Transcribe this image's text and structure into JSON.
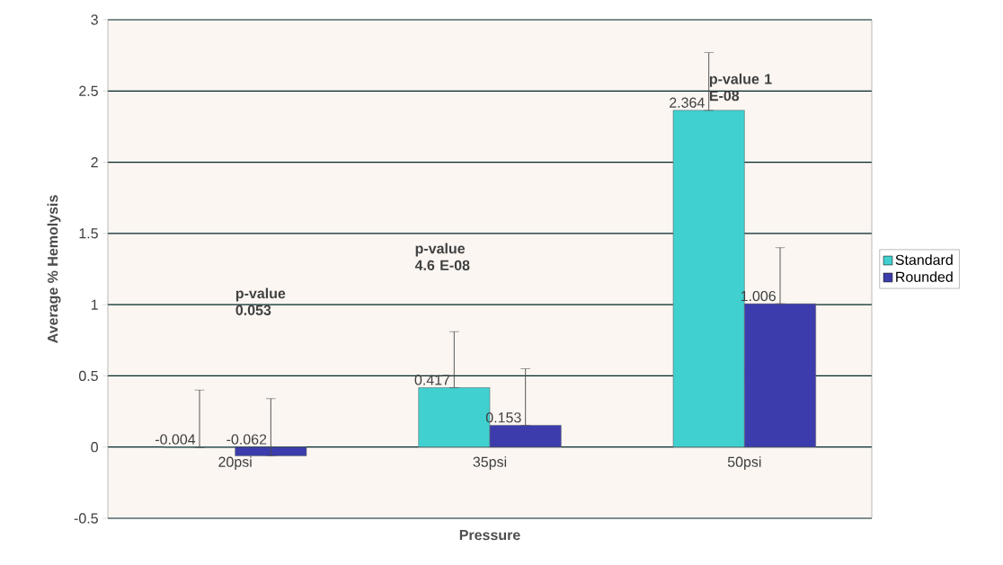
{
  "chart_data": {
    "type": "bar",
    "xlabel": "Pressure",
    "ylabel": "Average % Hemolysis",
    "categories": [
      "20psi",
      "35psi",
      "50psi"
    ],
    "series": [
      {
        "name": "Standard",
        "color": "#40d0d0",
        "values": [
          -0.004,
          0.417,
          2.364
        ],
        "value_labels": [
          "-0.004",
          "0.417",
          "2.364"
        ],
        "errors": [
          [
            -0.004,
            0.4
          ],
          [
            0.417,
            0.81
          ],
          [
            2.364,
            2.77
          ]
        ]
      },
      {
        "name": "Rounded",
        "color": "#3c3cac",
        "values": [
          -0.062,
          0.153,
          1.006
        ],
        "value_labels": [
          "-0.062",
          "0.153",
          "1.006"
        ],
        "errors": [
          [
            -0.062,
            0.34
          ],
          [
            0.153,
            0.55
          ],
          [
            1.006,
            1.4
          ]
        ]
      }
    ],
    "ylim": [
      -0.5,
      3
    ],
    "yticks": [
      -0.5,
      0,
      0.5,
      1,
      1.5,
      2,
      2.5,
      3
    ],
    "grid": "y",
    "legend": "right",
    "annotations": [
      "p-value 0.053",
      "p-value 4.6 E-08",
      "p-value 1 E-08"
    ]
  }
}
